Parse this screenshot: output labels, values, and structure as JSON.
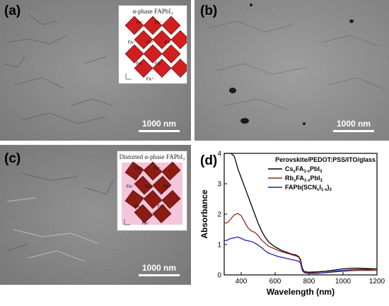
{
  "panels": {
    "a": {
      "label": "(a)",
      "scale_bar": "1000 nm",
      "inset_title": "α-phase FAPbI₃",
      "inset_cation": "FA⁺"
    },
    "b": {
      "label": "(b)",
      "scale_bar": "1000 nm"
    },
    "c": {
      "label": "(c)",
      "scale_bar": "1000 nm",
      "inset_title": "Distorted α-phase FAPbI₃",
      "inset_cation": "FA⁺"
    },
    "d": {
      "label": "(d)"
    }
  },
  "colors": {
    "octahedron": "#d11f1f",
    "octahedron_distorted": "#8a1c14",
    "distorted_bg": "#f4c6dc"
  },
  "chart_data": {
    "type": "line",
    "title": "Perovskite/PEDOT:PSS/ITO/glass",
    "xlabel": "Wavelength (nm)",
    "ylabel": "Absorbance",
    "xlim": [
      300,
      1200
    ],
    "ylim": [
      0,
      4
    ],
    "xticks": [
      "400",
      "600",
      "800",
      "1000",
      "1200"
    ],
    "yticks": [
      "0",
      "1",
      "2",
      "3",
      "4"
    ],
    "legend_position": "top-right",
    "series": [
      {
        "name": "CsxFA1-xPbI3",
        "legend": [
          "Cs",
          "x",
          "FA",
          "1-x",
          "PbI",
          "3"
        ],
        "color": "#000000",
        "x": [
          300,
          320,
          340,
          360,
          380,
          400,
          420,
          440,
          460,
          480,
          500,
          520,
          540,
          560,
          580,
          600,
          620,
          640,
          660,
          680,
          700,
          720,
          740,
          750,
          760,
          770,
          780,
          800,
          850,
          900,
          950,
          1000,
          1050,
          1100,
          1150,
          1200
        ],
        "y": [
          4.0,
          4.0,
          4.0,
          3.9,
          3.5,
          3.2,
          2.9,
          2.6,
          2.3,
          2.0,
          1.7,
          1.45,
          1.25,
          1.1,
          1.0,
          0.92,
          0.86,
          0.8,
          0.76,
          0.72,
          0.68,
          0.66,
          0.6,
          0.5,
          0.22,
          0.12,
          0.1,
          0.09,
          0.1,
          0.12,
          0.16,
          0.2,
          0.22,
          0.22,
          0.21,
          0.2
        ]
      },
      {
        "name": "RbxFA1-xPbI3",
        "legend": [
          "Rb",
          "x",
          "FA",
          "1-x",
          "PbI",
          "3"
        ],
        "color": "#8b2a1a",
        "x": [
          300,
          320,
          340,
          360,
          380,
          400,
          420,
          440,
          460,
          480,
          500,
          520,
          540,
          560,
          580,
          600,
          620,
          640,
          660,
          680,
          700,
          720,
          740,
          750,
          760,
          770,
          780,
          800,
          850,
          900,
          950,
          1000,
          1050,
          1100,
          1150,
          1200
        ],
        "y": [
          1.7,
          1.72,
          1.85,
          1.98,
          2.02,
          1.95,
          1.75,
          1.55,
          1.45,
          1.4,
          1.3,
          1.15,
          1.05,
          0.95,
          0.9,
          0.85,
          0.8,
          0.76,
          0.72,
          0.7,
          0.66,
          0.63,
          0.58,
          0.45,
          0.18,
          0.1,
          0.08,
          0.07,
          0.06,
          0.07,
          0.1,
          0.12,
          0.14,
          0.15,
          0.15,
          0.15
        ]
      },
      {
        "name": "FAPb(SCNxI1-x)3",
        "legend": [
          "FAPb(SCN",
          "x",
          "I",
          "1-x",
          ")",
          "3"
        ],
        "color": "#2020b0",
        "x": [
          300,
          320,
          340,
          360,
          380,
          400,
          420,
          440,
          460,
          480,
          500,
          520,
          540,
          560,
          580,
          600,
          620,
          640,
          660,
          680,
          700,
          720,
          740,
          750,
          760,
          770,
          780,
          800,
          850,
          900,
          950,
          1000,
          1050,
          1100,
          1150,
          1200
        ],
        "y": [
          1.12,
          1.15,
          1.2,
          1.22,
          1.25,
          1.2,
          1.15,
          1.12,
          1.1,
          1.05,
          0.98,
          0.9,
          0.8,
          0.72,
          0.68,
          0.64,
          0.6,
          0.58,
          0.55,
          0.53,
          0.5,
          0.48,
          0.45,
          0.38,
          0.15,
          0.08,
          0.06,
          0.05,
          0.05,
          0.08,
          0.12,
          0.15,
          0.17,
          0.18,
          0.18,
          0.19
        ]
      }
    ]
  }
}
